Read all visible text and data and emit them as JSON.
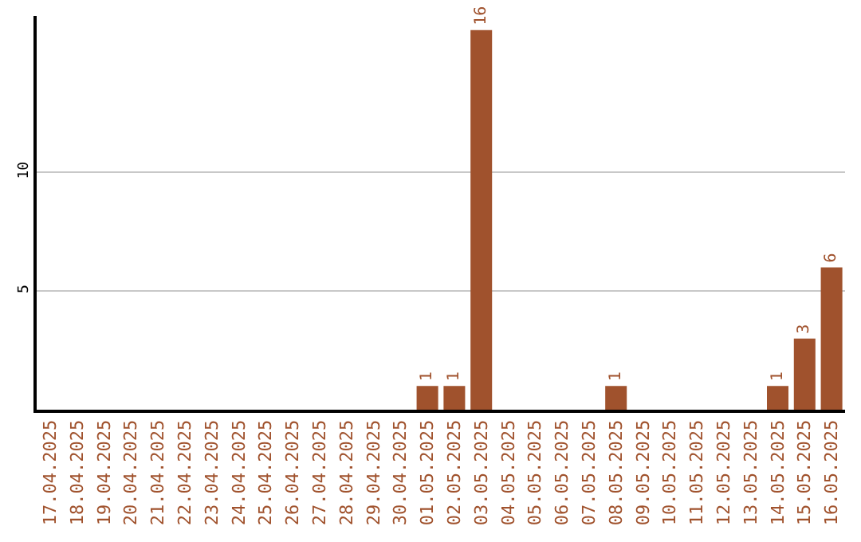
{
  "chart_data": {
    "type": "bar",
    "categories": [
      "17.04.2025",
      "18.04.2025",
      "19.04.2025",
      "20.04.2025",
      "21.04.2025",
      "22.04.2025",
      "23.04.2025",
      "24.04.2025",
      "25.04.2025",
      "26.04.2025",
      "27.04.2025",
      "28.04.2025",
      "29.04.2025",
      "30.04.2025",
      "01.05.2025",
      "02.05.2025",
      "03.05.2025",
      "04.05.2025",
      "05.05.2025",
      "06.05.2025",
      "07.05.2025",
      "08.05.2025",
      "09.05.2025",
      "10.05.2025",
      "11.05.2025",
      "12.05.2025",
      "13.05.2025",
      "14.05.2025",
      "15.05.2025",
      "16.05.2025"
    ],
    "values": [
      0,
      0,
      0,
      0,
      0,
      0,
      0,
      0,
      0,
      0,
      0,
      0,
      0,
      0,
      1,
      1,
      16,
      0,
      0,
      0,
      0,
      1,
      0,
      0,
      0,
      0,
      0,
      1,
      3,
      6
    ],
    "value_labels": [
      null,
      null,
      null,
      null,
      null,
      null,
      null,
      null,
      null,
      null,
      null,
      null,
      null,
      null,
      "1",
      "1",
      "16",
      null,
      null,
      null,
      null,
      "1",
      null,
      null,
      null,
      null,
      null,
      "1",
      "3",
      "6"
    ],
    "color": "#a0522d",
    "ylim": [
      0,
      16.6
    ],
    "yticks": [
      5,
      10
    ],
    "grid": "y"
  }
}
